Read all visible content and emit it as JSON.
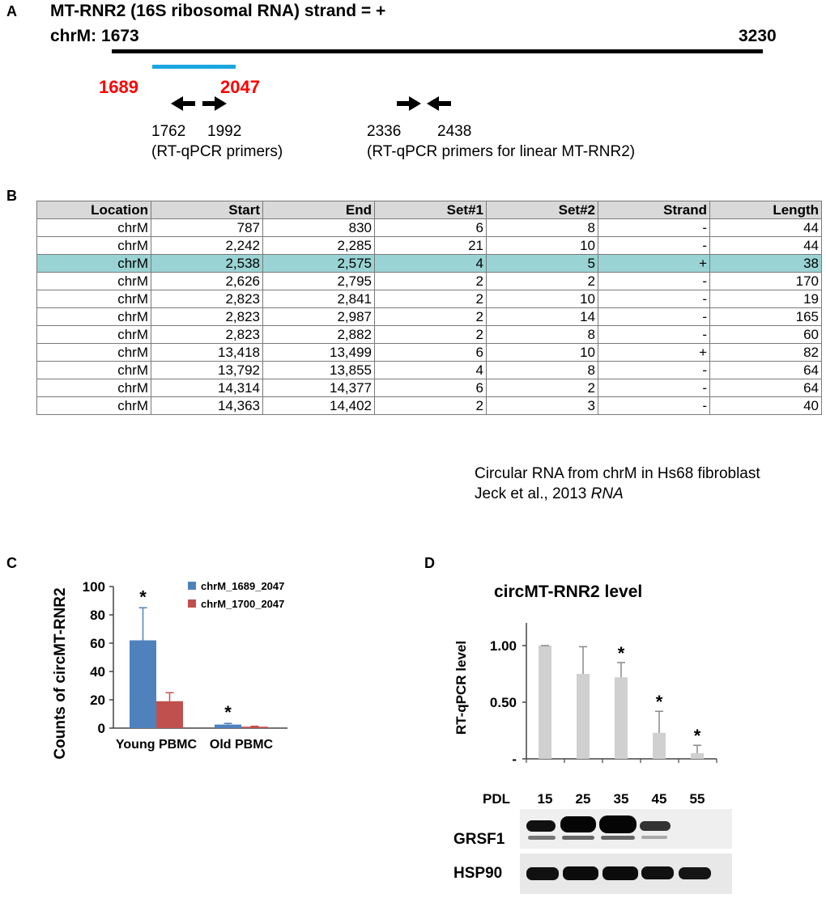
{
  "panel_a": {
    "letter": "A",
    "title_line1": "MT-RNR2 (16S ribosomal RNA) strand = +",
    "title_line2_prefix": "chrM:",
    "start": "1673",
    "end": "3230",
    "region_start": "1689",
    "region_end": "2047",
    "primer1_left": "1762",
    "primer1_right": "1992",
    "primer1_caption": "(RT-qPCR primers)",
    "primer2_left": "2336",
    "primer2_right": "2438",
    "primer2_caption": "(RT-qPCR primers for linear MT-RNR2)",
    "colors": {
      "region_bar": "#1aa7e0",
      "region_label": "#ff0000"
    }
  },
  "panel_b": {
    "letter": "B",
    "headers": [
      "Location",
      "Start",
      "End",
      "Set#1",
      "Set#2",
      "Strand",
      "Length"
    ],
    "rows": [
      [
        "chrM",
        "787",
        "830",
        "6",
        "8",
        "-",
        "44"
      ],
      [
        "chrM",
        "2,242",
        "2,285",
        "21",
        "10",
        "-",
        "44"
      ],
      [
        "chrM",
        "2,538",
        "2,575",
        "4",
        "5",
        "+",
        "38"
      ],
      [
        "chrM",
        "2,626",
        "2,795",
        "2",
        "2",
        "-",
        "170"
      ],
      [
        "chrM",
        "2,823",
        "2,841",
        "2",
        "10",
        "-",
        "19"
      ],
      [
        "chrM",
        "2,823",
        "2,987",
        "2",
        "14",
        "-",
        "165"
      ],
      [
        "chrM",
        "2,823",
        "2,882",
        "2",
        "8",
        "-",
        "60"
      ],
      [
        "chrM",
        "13,418",
        "13,499",
        "6",
        "10",
        "+",
        "82"
      ],
      [
        "chrM",
        "13,792",
        "13,855",
        "4",
        "8",
        "-",
        "64"
      ],
      [
        "chrM",
        "14,314",
        "14,377",
        "6",
        "2",
        "-",
        "64"
      ],
      [
        "chrM",
        "14,363",
        "14,402",
        "2",
        "3",
        "-",
        "40"
      ]
    ],
    "highlight_row": 2,
    "highlight_color": "#9ad3d4",
    "caption_line1": "Circular RNA from chrM in Hs68 fibroblast",
    "caption_line2_text": "Jeck et al., 2013 ",
    "caption_line2_italic": "RNA"
  },
  "panel_c": {
    "letter": "C",
    "chart_data": {
      "type": "bar",
      "categories": [
        "Young PBMC",
        "Old PBMC"
      ],
      "series": [
        {
          "name": "chrM_1689_2047",
          "color": "#4f81bd",
          "values": [
            62,
            2.5
          ],
          "errors": [
            23,
            0.8
          ]
        },
        {
          "name": "chrM_1700_2047",
          "color": "#c0504d",
          "values": [
            19,
            1.0
          ],
          "errors": [
            6,
            0.3
          ]
        }
      ],
      "ylabel": "Counts of circMT-RNR2",
      "ylim": [
        0,
        100
      ],
      "yticks": [
        "0",
        "20",
        "40",
        "60",
        "80",
        "100"
      ],
      "significance": [
        [
          "*",
          ""
        ],
        [
          "*",
          ""
        ]
      ],
      "legend": "top-right"
    }
  },
  "panel_d": {
    "letter": "D",
    "chart_data": {
      "type": "bar",
      "title": "circMT-RNR2 level",
      "ylabel": "RT-qPCR level",
      "categories": [
        "15",
        "25",
        "35",
        "45",
        "55"
      ],
      "values": [
        1.0,
        0.75,
        0.72,
        0.23,
        0.05
      ],
      "errors": [
        0.0,
        0.24,
        0.13,
        0.19,
        0.07
      ],
      "significance": [
        "",
        "",
        "*",
        "*",
        "*"
      ],
      "color": "#d0d0d0",
      "ylim": [
        0,
        1.2
      ],
      "yticks": [
        "-",
        "0.50",
        "1.00"
      ],
      "xlabel_title": "PDL"
    },
    "blot_labels": [
      "GRSF1",
      "HSP90"
    ]
  }
}
